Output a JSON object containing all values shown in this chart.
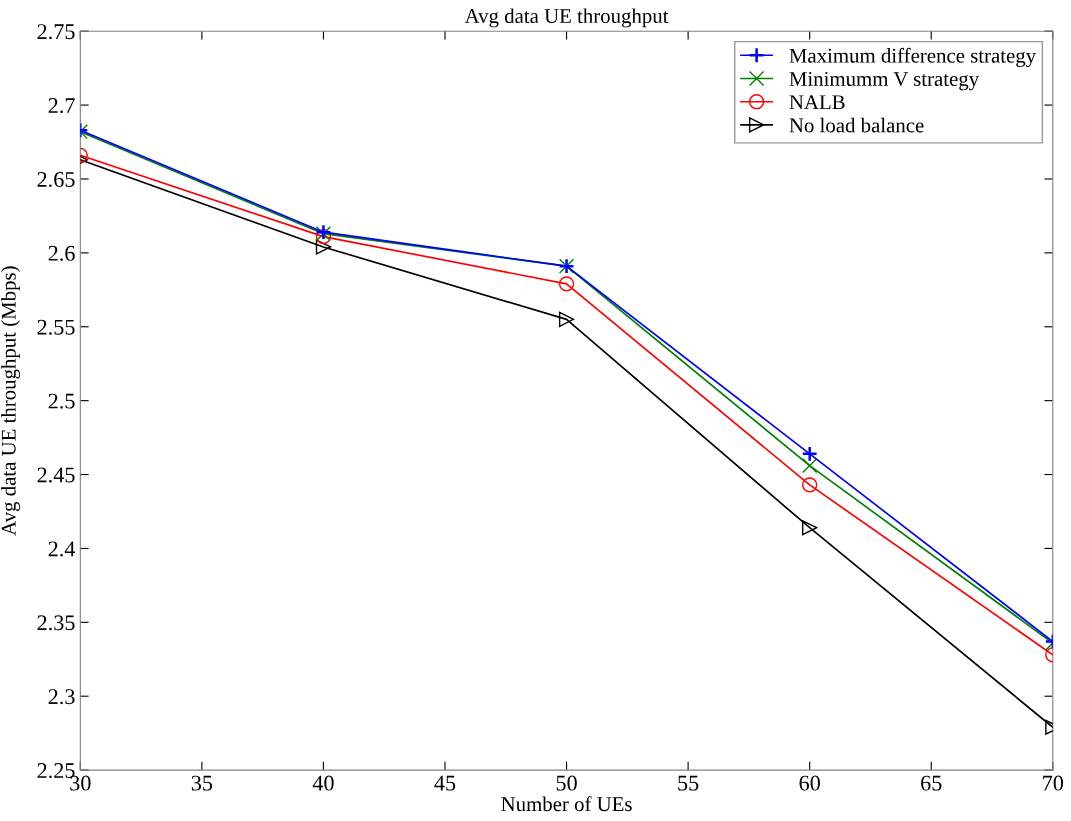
{
  "chart_data": {
    "type": "line",
    "title": "Avg data UE throughput",
    "xlabel": "Number of UEs",
    "ylabel": "Avg data UE throughput (Mbps)",
    "x": [
      30,
      40,
      50,
      60,
      70
    ],
    "series": [
      {
        "name": "Maximum difference strategy",
        "color": "#0000ff",
        "marker": "plus",
        "values": [
          2.683,
          2.614,
          2.591,
          2.464,
          2.337
        ]
      },
      {
        "name": "Minimumm V strategy",
        "color": "#008000",
        "marker": "cross",
        "values": [
          2.682,
          2.613,
          2.591,
          2.456,
          2.336
        ]
      },
      {
        "name": "NALB",
        "color": "#ff0000",
        "marker": "circle",
        "values": [
          2.666,
          2.611,
          2.579,
          2.443,
          2.328
        ]
      },
      {
        "name": "No load balance",
        "color": "#000000",
        "marker": "triangle",
        "values": [
          2.663,
          2.604,
          2.555,
          2.414,
          2.279
        ]
      }
    ],
    "xlim": [
      30,
      70
    ],
    "xticks": [
      30,
      35,
      40,
      45,
      50,
      55,
      60,
      65,
      70
    ],
    "ylim": [
      2.25,
      2.75
    ],
    "yticks": [
      2.25,
      2.3,
      2.35,
      2.4,
      2.45,
      2.5,
      2.55,
      2.6,
      2.65,
      2.7,
      2.75
    ],
    "grid": false,
    "legend": "top right",
    "line_style": "solid"
  }
}
